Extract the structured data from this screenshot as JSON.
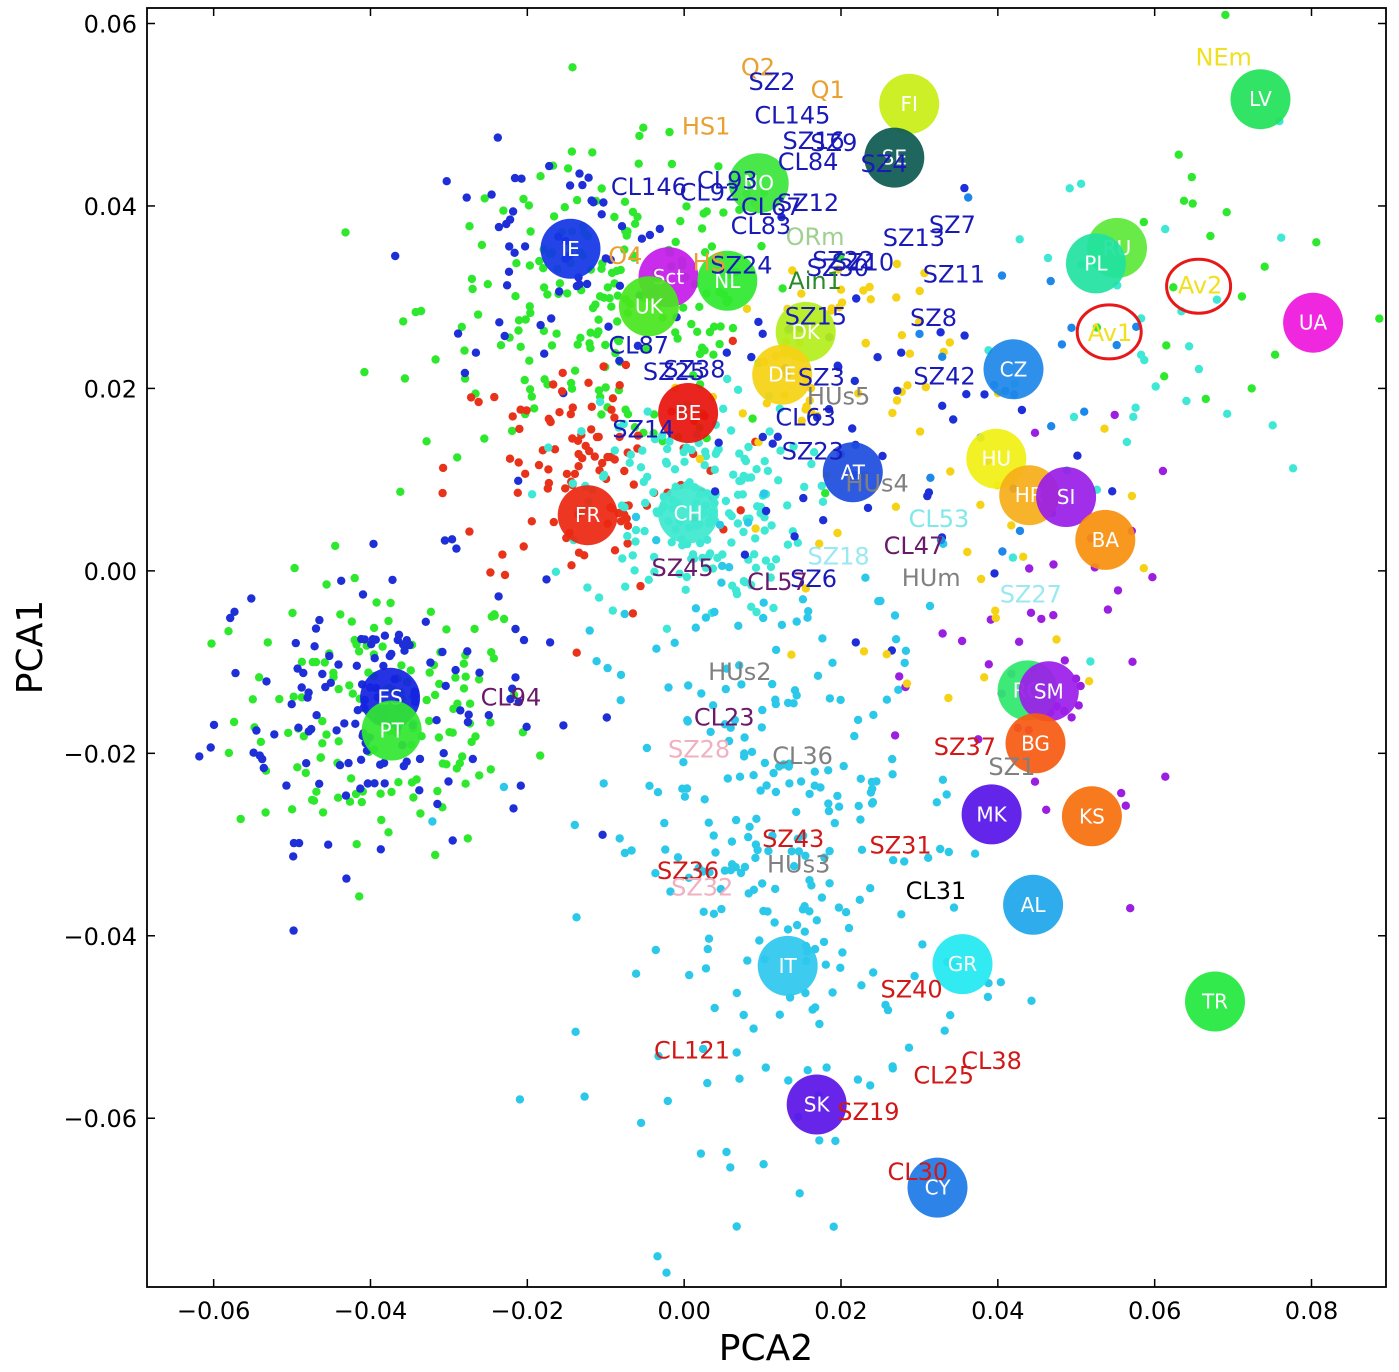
{
  "chart_data": {
    "type": "scatter",
    "xlabel": "PCA2",
    "ylabel": "PCA1",
    "xlim": [
      -0.0685,
      0.0895
    ],
    "ylim": [
      -0.0785,
      0.0617
    ],
    "xticks": [
      -0.06,
      -0.04,
      -0.02,
      0.0,
      0.02,
      0.04,
      0.06,
      0.08
    ],
    "yticks": [
      -0.06,
      -0.04,
      -0.02,
      0.0,
      0.02,
      0.04,
      0.06
    ],
    "xtick_labels": [
      "−0.06",
      "−0.04",
      "−0.02",
      "0.00",
      "0.02",
      "0.04",
      "0.06",
      "0.08"
    ],
    "ytick_labels": [
      "−0.06",
      "−0.04",
      "−0.02",
      "0.00",
      "0.02",
      "0.04",
      "0.06"
    ],
    "grid": false,
    "background_clouds": [
      {
        "color": "#2ee82e",
        "center": [
          -0.0385,
          -0.016
        ],
        "spread": [
          0.0095,
          0.0075
        ],
        "count": 150
      },
      {
        "color": "#1f2fd8",
        "center": [
          -0.039,
          -0.014
        ],
        "spread": [
          0.0105,
          0.0075
        ],
        "count": 140
      },
      {
        "color": "#2ee82e",
        "center": [
          -0.009,
          0.029
        ],
        "spread": [
          0.012,
          0.008
        ],
        "count": 210
      },
      {
        "color": "#1f2fd8",
        "center": [
          -0.016,
          0.034
        ],
        "spread": [
          0.009,
          0.006
        ],
        "count": 60
      },
      {
        "color": "#e8321a",
        "center": [
          -0.012,
          0.011
        ],
        "spread": [
          0.009,
          0.007
        ],
        "count": 110
      },
      {
        "color": "#3fe8d4",
        "center": [
          0.001,
          0.007
        ],
        "spread": [
          0.007,
          0.006
        ],
        "count": 190
      },
      {
        "color": "#2cc8ea",
        "center": [
          0.013,
          -0.03
        ],
        "spread": [
          0.012,
          0.016
        ],
        "count": 280
      },
      {
        "color": "#f5d214",
        "center": [
          0.018,
          0.022
        ],
        "spread": [
          0.008,
          0.008
        ],
        "count": 60
      },
      {
        "color": "#1f2fd8",
        "center": [
          0.022,
          0.016
        ],
        "spread": [
          0.012,
          0.01
        ],
        "count": 50
      },
      {
        "color": "#9a1fe0",
        "center": [
          0.048,
          -0.012
        ],
        "spread": [
          0.008,
          0.01
        ],
        "count": 45
      },
      {
        "color": "#3fe8d4",
        "center": [
          0.056,
          0.022
        ],
        "spread": [
          0.012,
          0.015
        ],
        "count": 35
      },
      {
        "color": "#2ee82e",
        "center": [
          0.066,
          0.03
        ],
        "spread": [
          0.01,
          0.012
        ],
        "count": 20
      },
      {
        "color": "#f5d214",
        "center": [
          0.038,
          0.0
        ],
        "spread": [
          0.01,
          0.01
        ],
        "count": 25
      },
      {
        "color": "#1e88ea",
        "center": [
          0.04,
          0.02
        ],
        "spread": [
          0.008,
          0.008
        ],
        "count": 20
      }
    ],
    "populations": [
      {
        "label": "LV",
        "x": 0.0735,
        "y": 0.0517,
        "color": "#22e25a"
      },
      {
        "label": "FI",
        "x": 0.0287,
        "y": 0.0512,
        "color": "#c8ee18"
      },
      {
        "label": "SE",
        "x": 0.0268,
        "y": 0.0453,
        "color": "#0e5a52"
      },
      {
        "label": "NO",
        "x": 0.0095,
        "y": 0.0425,
        "color": "#3ce53c"
      },
      {
        "label": "RU",
        "x": 0.0552,
        "y": 0.0354,
        "color": "#5ee83a"
      },
      {
        "label": "PL",
        "x": 0.0525,
        "y": 0.0337,
        "color": "#22e2a0"
      },
      {
        "label": "UA",
        "x": 0.0802,
        "y": 0.0272,
        "color": "#ee18de"
      },
      {
        "label": "IE",
        "x": -0.0145,
        "y": 0.0353,
        "color": "#1436e6"
      },
      {
        "label": "Sct",
        "x": -0.002,
        "y": 0.0322,
        "color": "#c51cea"
      },
      {
        "label": "NL",
        "x": 0.0055,
        "y": 0.0318,
        "color": "#2ee82e"
      },
      {
        "label": "UK",
        "x": -0.0045,
        "y": 0.029,
        "color": "#48e61e"
      },
      {
        "label": "DK",
        "x": 0.0155,
        "y": 0.0262,
        "color": "#b4ee1c"
      },
      {
        "label": "DE",
        "x": 0.0125,
        "y": 0.0215,
        "color": "#f5d214"
      },
      {
        "label": "CZ",
        "x": 0.042,
        "y": 0.0221,
        "color": "#1e88ea"
      },
      {
        "label": "BE",
        "x": 0.0005,
        "y": 0.0173,
        "color": "#e8140e"
      },
      {
        "label": "AT",
        "x": 0.0215,
        "y": 0.0108,
        "color": "#1e4ee0"
      },
      {
        "label": "HU",
        "x": 0.0398,
        "y": 0.0123,
        "color": "#f0f014"
      },
      {
        "label": "HR",
        "x": 0.044,
        "y": 0.0083,
        "color": "#f6ae1a"
      },
      {
        "label": "SI",
        "x": 0.0487,
        "y": 0.0081,
        "color": "#9a1ee6"
      },
      {
        "label": "FR",
        "x": -0.0123,
        "y": 0.0061,
        "color": "#ec2812"
      },
      {
        "label": "CH",
        "x": 0.0005,
        "y": 0.0063,
        "color": "#3ee8d0"
      },
      {
        "label": "BA",
        "x": 0.0537,
        "y": 0.0034,
        "color": "#f8900e"
      },
      {
        "label": "RO",
        "x": 0.0438,
        "y": -0.0131,
        "color": "#2ee86e"
      },
      {
        "label": "SM",
        "x": 0.0465,
        "y": -0.0132,
        "color": "#9c1eea"
      },
      {
        "label": "ES",
        "x": -0.0375,
        "y": -0.0139,
        "color": "#1424e0"
      },
      {
        "label": "PT",
        "x": -0.0373,
        "y": -0.0175,
        "color": "#32e632"
      },
      {
        "label": "BG",
        "x": 0.0448,
        "y": -0.0189,
        "color": "#f85a12"
      },
      {
        "label": "MK",
        "x": 0.0392,
        "y": -0.0267,
        "color": "#5814e8"
      },
      {
        "label": "KS",
        "x": 0.052,
        "y": -0.0269,
        "color": "#f8700e"
      },
      {
        "label": "AL",
        "x": 0.0445,
        "y": -0.0366,
        "color": "#1ea6ea"
      },
      {
        "label": "IT",
        "x": 0.0132,
        "y": -0.0433,
        "color": "#2ec8ee"
      },
      {
        "label": "GR",
        "x": 0.0355,
        "y": -0.0431,
        "color": "#22e8f0"
      },
      {
        "label": "TR",
        "x": 0.0677,
        "y": -0.0472,
        "color": "#22e83e"
      },
      {
        "label": "SK",
        "x": 0.0169,
        "y": -0.0585,
        "color": "#5a14e6"
      },
      {
        "label": "CY",
        "x": 0.0323,
        "y": -0.0676,
        "color": "#1e7ae6"
      }
    ],
    "sample_labels": [
      {
        "text": "NEm",
        "x": 0.0688,
        "y": 0.0563,
        "color": "#f0e020"
      },
      {
        "text": "Q2",
        "x": 0.0094,
        "y": 0.0552,
        "color": "#e8a030"
      },
      {
        "text": "SZ2",
        "x": 0.0112,
        "y": 0.0536,
        "color": "#1a1ab8"
      },
      {
        "text": "Q1",
        "x": 0.0183,
        "y": 0.0527,
        "color": "#e8a030"
      },
      {
        "text": "CL145",
        "x": 0.0138,
        "y": 0.0499,
        "color": "#1a1ab8"
      },
      {
        "text": "HS1",
        "x": 0.0028,
        "y": 0.0487,
        "color": "#e8a030"
      },
      {
        "text": "SZ16",
        "x": 0.0165,
        "y": 0.0471,
        "color": "#1a1ab8"
      },
      {
        "text": "SZ9",
        "x": 0.0191,
        "y": 0.0469,
        "color": "#1a1ab8"
      },
      {
        "text": "CL84",
        "x": 0.0158,
        "y": 0.0448,
        "color": "#1a1ab8"
      },
      {
        "text": "SZ4",
        "x": 0.0255,
        "y": 0.0446,
        "color": "#1a1ab8"
      },
      {
        "text": "CL93",
        "x": 0.0055,
        "y": 0.0428,
        "color": "#1a1ab8"
      },
      {
        "text": "CL146",
        "x": -0.0045,
        "y": 0.0421,
        "color": "#1a1ab8"
      },
      {
        "text": "CL92",
        "x": 0.0033,
        "y": 0.0415,
        "color": "#1a1ab8"
      },
      {
        "text": "SZ12",
        "x": 0.0158,
        "y": 0.0403,
        "color": "#1a1ab8"
      },
      {
        "text": "CL67",
        "x": 0.0111,
        "y": 0.0399,
        "color": "#1a1ab8"
      },
      {
        "text": "CL83",
        "x": 0.0098,
        "y": 0.0378,
        "color": "#1a1ab8"
      },
      {
        "text": "SZ7",
        "x": 0.0342,
        "y": 0.0379,
        "color": "#1a1ab8"
      },
      {
        "text": "ORm",
        "x": 0.0167,
        "y": 0.0366,
        "color": "#a0d090"
      },
      {
        "text": "SZ13",
        "x": 0.0293,
        "y": 0.0365,
        "color": "#1a1ab8"
      },
      {
        "text": "O4",
        "x": -0.0075,
        "y": 0.0345,
        "color": "#e8a030"
      },
      {
        "text": "SZ22",
        "x": 0.0203,
        "y": 0.034,
        "color": "#1a1ab8"
      },
      {
        "text": "SZ10",
        "x": 0.0228,
        "y": 0.0338,
        "color": "#1a1ab8"
      },
      {
        "text": "SZ24",
        "x": 0.0073,
        "y": 0.0335,
        "color": "#1a1ab8"
      },
      {
        "text": "HS",
        "x": 0.0032,
        "y": 0.0338,
        "color": "#e8a030"
      },
      {
        "text": "SZ30",
        "x": 0.0196,
        "y": 0.0332,
        "color": "#1a1ab8"
      },
      {
        "text": "SZ11",
        "x": 0.0344,
        "y": 0.0325,
        "color": "#1a1ab8"
      },
      {
        "text": "Ain1",
        "x": 0.0167,
        "y": 0.0318,
        "color": "#2a8a2a"
      },
      {
        "text": "Av2",
        "x": 0.0658,
        "y": 0.0313,
        "color": "#f0e020"
      },
      {
        "text": "Av1",
        "x": 0.0543,
        "y": 0.0261,
        "color": "#f0e020"
      },
      {
        "text": "SZ15",
        "x": 0.0168,
        "y": 0.0279,
        "color": "#1a1ab8"
      },
      {
        "text": "SZ8",
        "x": 0.0318,
        "y": 0.0277,
        "color": "#1a1ab8"
      },
      {
        "text": "CL87",
        "x": -0.0058,
        "y": 0.0247,
        "color": "#1a1ab8"
      },
      {
        "text": "SZ25",
        "x": -0.0013,
        "y": 0.0218,
        "color": "#1a1ab8"
      },
      {
        "text": "SZ38",
        "x": 0.0013,
        "y": 0.0221,
        "color": "#1a1ab8"
      },
      {
        "text": "SZ3",
        "x": 0.0175,
        "y": 0.0212,
        "color": "#1a1ab8"
      },
      {
        "text": "SZ42",
        "x": 0.0332,
        "y": 0.0213,
        "color": "#1a1ab8"
      },
      {
        "text": "HUs5",
        "x": 0.0197,
        "y": 0.0191,
        "color": "#808080"
      },
      {
        "text": "CL63",
        "x": 0.0155,
        "y": 0.0168,
        "color": "#1a1ab8"
      },
      {
        "text": "SZ14",
        "x": -0.0052,
        "y": 0.0155,
        "color": "#1a1ab8"
      },
      {
        "text": "SZ23",
        "x": 0.0164,
        "y": 0.0131,
        "color": "#1a1ab8"
      },
      {
        "text": "HUs4",
        "x": 0.0246,
        "y": 0.0096,
        "color": "#808080"
      },
      {
        "text": "CL53",
        "x": 0.0325,
        "y": 0.0057,
        "color": "#80e8e8"
      },
      {
        "text": "CL47",
        "x": 0.0293,
        "y": 0.0027,
        "color": "#6a1a6a"
      },
      {
        "text": "SZ18",
        "x": 0.0197,
        "y": 0.0016,
        "color": "#9ae8f0"
      },
      {
        "text": "SZ45",
        "x": -0.0002,
        "y": 0.0003,
        "color": "#6a1a6a"
      },
      {
        "text": "SZ6",
        "x": 0.0165,
        "y": -0.0009,
        "color": "#1a1ab8"
      },
      {
        "text": "CL57",
        "x": 0.0119,
        "y": -0.0012,
        "color": "#6a1a6a"
      },
      {
        "text": "HUm",
        "x": 0.0315,
        "y": -0.0008,
        "color": "#808080"
      },
      {
        "text": "SZ27",
        "x": 0.0442,
        "y": -0.0026,
        "color": "#9ae8f0"
      },
      {
        "text": "HUs2",
        "x": 0.0071,
        "y": -0.0111,
        "color": "#808080"
      },
      {
        "text": "CL94",
        "x": -0.0221,
        "y": -0.0139,
        "color": "#6a1a6a"
      },
      {
        "text": "CL23",
        "x": 0.0051,
        "y": -0.0161,
        "color": "#6a1a6a"
      },
      {
        "text": "SZ28",
        "x": 0.0019,
        "y": -0.0196,
        "color": "#f0b0c0"
      },
      {
        "text": "SZ37",
        "x": 0.0358,
        "y": -0.0193,
        "color": "#d01818"
      },
      {
        "text": "CL36",
        "x": 0.0151,
        "y": -0.0203,
        "color": "#808080"
      },
      {
        "text": "SZ1",
        "x": 0.0418,
        "y": -0.0215,
        "color": "#808080"
      },
      {
        "text": "SZ43",
        "x": 0.0139,
        "y": -0.0294,
        "color": "#d01818"
      },
      {
        "text": "SZ31",
        "x": 0.0276,
        "y": -0.0301,
        "color": "#d01818"
      },
      {
        "text": "SZ36",
        "x": 0.0005,
        "y": -0.0329,
        "color": "#d01818"
      },
      {
        "text": "HUs3",
        "x": 0.0146,
        "y": -0.0322,
        "color": "#808080"
      },
      {
        "text": "SZ32",
        "x": 0.0023,
        "y": -0.0347,
        "color": "#f0b0c0"
      },
      {
        "text": "CL31",
        "x": 0.0321,
        "y": -0.0351,
        "color": "#000000"
      },
      {
        "text": "SZ40",
        "x": 0.029,
        "y": -0.0459,
        "color": "#d01818"
      },
      {
        "text": "CL121",
        "x": 0.001,
        "y": -0.0526,
        "color": "#d01818"
      },
      {
        "text": "CL38",
        "x": 0.0392,
        "y": -0.0537,
        "color": "#d01818"
      },
      {
        "text": "CL25",
        "x": 0.0331,
        "y": -0.0553,
        "color": "#d01818"
      },
      {
        "text": "SZ19",
        "x": 0.0235,
        "y": -0.0593,
        "color": "#d01818"
      },
      {
        "text": "CL30",
        "x": 0.0298,
        "y": -0.0659,
        "color": "#d01818"
      }
    ],
    "highlights": [
      {
        "label": "Av2",
        "x": 0.0656,
        "y": 0.0312,
        "color": "#e81818"
      },
      {
        "label": "Av1",
        "x": 0.0542,
        "y": 0.0262,
        "color": "#e81818"
      }
    ]
  }
}
